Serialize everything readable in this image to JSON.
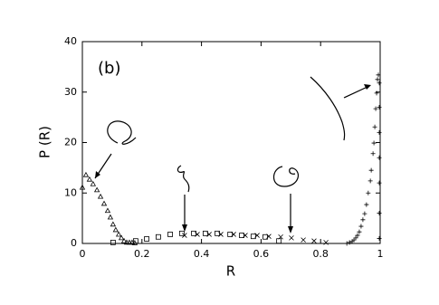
{
  "chart_data": {
    "type": "scatter",
    "title": "(b)",
    "x_label": "R",
    "y_label": "P (R)",
    "xlim": [
      0,
      1
    ],
    "ylim": [
      0,
      40
    ],
    "xticks": [
      0,
      0.2,
      0.4,
      0.6,
      0.8,
      1
    ],
    "yticks": [
      0,
      10,
      20,
      30,
      40
    ],
    "color": "#000000",
    "series": [
      {
        "marker": "triangle",
        "x": [
          0,
          0.012,
          0.024,
          0.036,
          0.049,
          0.061,
          0.073,
          0.085,
          0.094,
          0.103,
          0.112,
          0.122,
          0.131,
          0.14,
          0.149,
          0.158,
          0.167,
          0.176
        ],
        "values": [
          11.1,
          13.6,
          12.7,
          11.8,
          10.6,
          9.3,
          7.9,
          6.5,
          5.2,
          3.8,
          2.7,
          1.8,
          1.1,
          0.5,
          0.2,
          0.2,
          0.2,
          0.1
        ]
      },
      {
        "marker": "square",
        "x": [
          0.103,
          0.179,
          0.216,
          0.255,
          0.295,
          0.334,
          0.374,
          0.413,
          0.453,
          0.496,
          0.535,
          0.574,
          0.614,
          0.66
        ],
        "values": [
          0.2,
          0.5,
          0.9,
          1.3,
          1.8,
          2.0,
          2.0,
          2.0,
          2.0,
          1.8,
          1.6,
          1.4,
          1.3,
          0.5
        ]
      },
      {
        "marker": "x",
        "x": [
          0.343,
          0.386,
          0.426,
          0.465,
          0.508,
          0.547,
          0.587,
          0.626,
          0.666,
          0.702,
          0.742,
          0.778,
          0.818
        ],
        "values": [
          1.6,
          1.8,
          1.8,
          1.8,
          1.8,
          1.6,
          1.6,
          1.4,
          1.3,
          1.1,
          0.7,
          0.5,
          0.2
        ]
      },
      {
        "marker": "plus",
        "x": [
          0.888,
          0.897,
          0.906,
          0.912,
          0.918,
          0.924,
          0.93,
          0.936,
          0.942,
          0.948,
          0.954,
          0.96,
          0.967,
          0.97,
          0.976,
          0.979,
          0.982,
          0.985,
          0.988,
          0.991,
          0.994,
          0.997,
          0.997,
          0.997,
          0.997,
          0.997,
          0.997,
          0.997
        ],
        "values": [
          0,
          0.2,
          0.4,
          0.7,
          1.1,
          1.6,
          2.3,
          3.4,
          4.7,
          5.9,
          7.7,
          10.0,
          12.4,
          14.5,
          17.8,
          19.9,
          23.1,
          26.7,
          29.8,
          32.5,
          33.4,
          31.8,
          27,
          22,
          17,
          12,
          6,
          1
        ]
      }
    ]
  }
}
